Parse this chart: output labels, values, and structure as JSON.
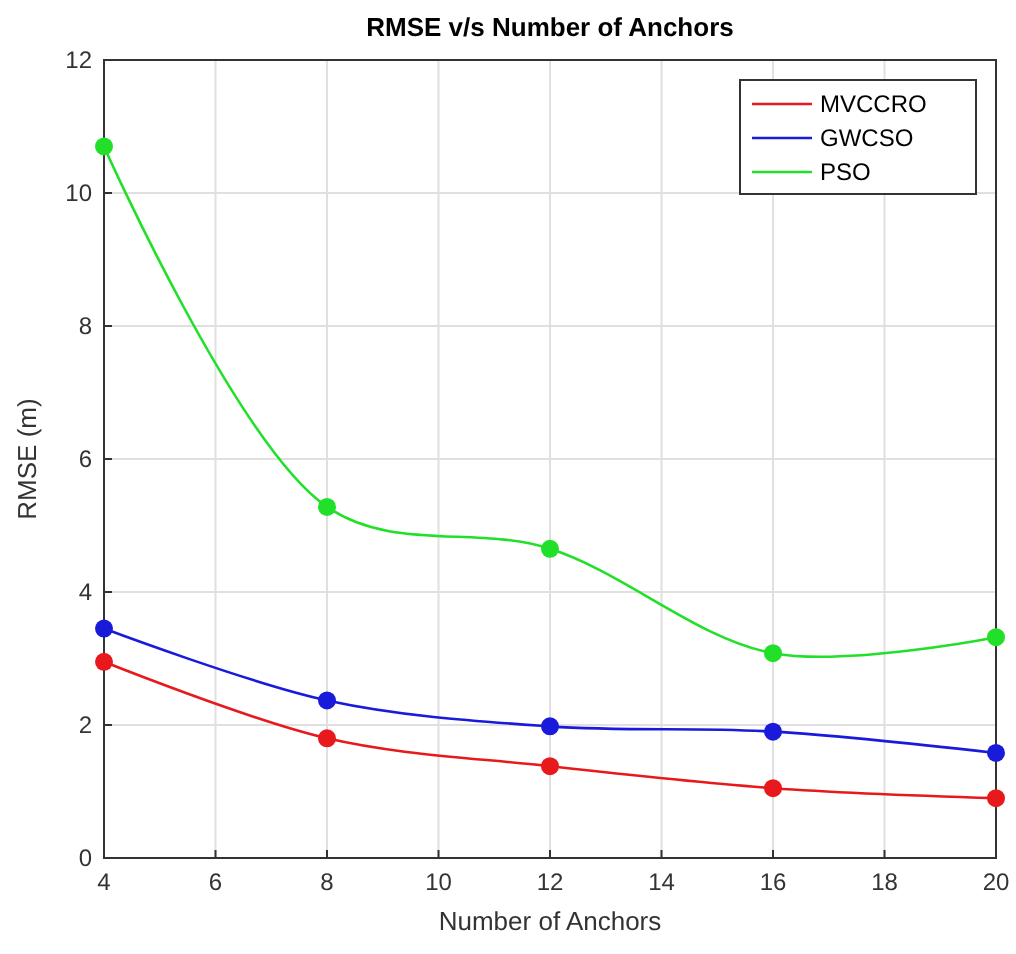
{
  "chart_data": {
    "type": "line",
    "title": "RMSE v/s Number of Anchors",
    "xlabel": "Number of Anchors",
    "ylabel": "RMSE (m)",
    "x": [
      4,
      8,
      12,
      16,
      20
    ],
    "series": [
      {
        "name": "MVCCRO",
        "color": "#e8191c",
        "values": [
          2.95,
          1.8,
          1.38,
          1.05,
          0.9
        ]
      },
      {
        "name": "GWCSO",
        "color": "#1a1adb",
        "values": [
          3.45,
          2.37,
          1.98,
          1.9,
          1.58
        ]
      },
      {
        "name": "PSO",
        "color": "#22e02a",
        "values": [
          10.7,
          5.28,
          4.65,
          3.08,
          3.32
        ]
      }
    ],
    "xlim": [
      4,
      20
    ],
    "xticks": [
      4,
      6,
      8,
      10,
      12,
      14,
      16,
      18,
      20
    ],
    "ylim": [
      0,
      12
    ],
    "yticks": [
      0,
      2,
      4,
      6,
      8,
      10,
      12
    ],
    "grid": true,
    "legend": "top right",
    "marker": "circle",
    "line_style": "solid"
  }
}
